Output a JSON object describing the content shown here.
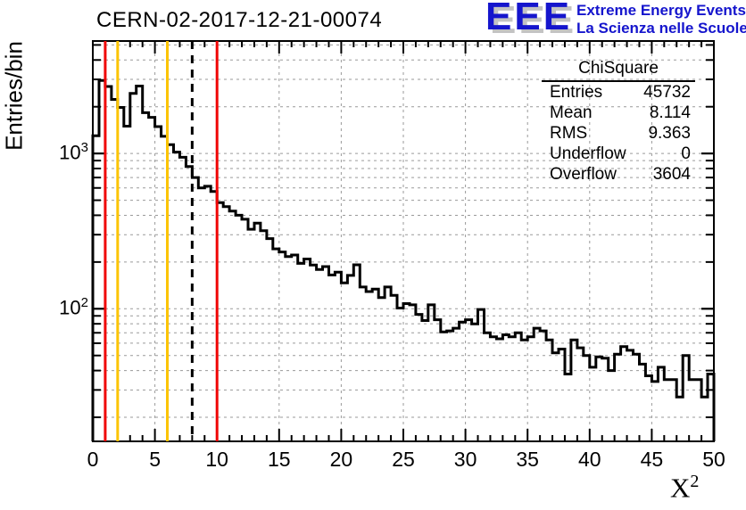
{
  "title": "CERN-02-2017-12-21-00074",
  "logo": {
    "text": "EEE",
    "line1": "Extreme Energy Events",
    "line2": "La Scienza nelle Scuole",
    "color": "#1515cd",
    "shadow_color": "#c3c3c3"
  },
  "stats": {
    "title": "ChiSquare",
    "rows": [
      {
        "label": "Entries",
        "value": "45732"
      },
      {
        "label": "Mean",
        "value": "8.114"
      },
      {
        "label": "RMS",
        "value": "9.363"
      },
      {
        "label": "Underflow",
        "value": "0"
      },
      {
        "label": "Overflow",
        "value": "3604"
      }
    ]
  },
  "y_axis": {
    "label": "Entries/bin",
    "ticks": [
      {
        "base": "10",
        "exp": "3"
      },
      {
        "base": "10",
        "exp": "2"
      }
    ]
  },
  "x_axis": {
    "title_base": "X",
    "title_exp": "2",
    "tick_labels": [
      0,
      5,
      10,
      15,
      20,
      25,
      30,
      35,
      40,
      45,
      50
    ]
  },
  "colors": {
    "hist": "#000000",
    "frame": "#000000",
    "grid": "#9a9a9a",
    "red_line": "#f00505",
    "yellow_line": "#fcc400"
  },
  "chart_data": {
    "type": "bar",
    "subtype": "step-histogram",
    "title": "CERN-02-2017-12-21-00074",
    "xlabel": "X^2",
    "ylabel": "Entries/bin",
    "y_scale": "log",
    "xlim": [
      0,
      50
    ],
    "ylim": [
      14,
      5300
    ],
    "x_start": 0,
    "bin_width": 0.5,
    "values": [
      1300,
      2950,
      2700,
      2230,
      1980,
      1500,
      2440,
      2720,
      1830,
      1710,
      1490,
      1290,
      1140,
      1020,
      945,
      825,
      700,
      600,
      615,
      570,
      483,
      455,
      426,
      400,
      377,
      325,
      356,
      318,
      283,
      243,
      232,
      217,
      222,
      196,
      209,
      191,
      179,
      187,
      165,
      172,
      147,
      164,
      192,
      138,
      129,
      134,
      118,
      138,
      122,
      101,
      108,
      106,
      92,
      84,
      106,
      85,
      71,
      72,
      75,
      82,
      85,
      80,
      99,
      70,
      66,
      64,
      68,
      66,
      70,
      63,
      66,
      75,
      72,
      63,
      52,
      55,
      38,
      63,
      56,
      50,
      42,
      49,
      48,
      40,
      51,
      57,
      54,
      51,
      44,
      37,
      34,
      42,
      35,
      35,
      27,
      50,
      35,
      35,
      27,
      38
    ],
    "grid_x": [
      5,
      10,
      15,
      20,
      25,
      30,
      35,
      40,
      45
    ],
    "x_major_tick_step": 5,
    "x_minor_tick_step": 1,
    "marker_lines": [
      {
        "x": 1,
        "color": "#f00505",
        "style": "solid"
      },
      {
        "x": 2,
        "color": "#fcc400",
        "style": "solid"
      },
      {
        "x": 6,
        "color": "#fcc400",
        "style": "solid"
      },
      {
        "x": 8,
        "color": "#000000",
        "style": "dashed"
      },
      {
        "x": 10,
        "color": "#f00505",
        "style": "solid"
      }
    ]
  }
}
